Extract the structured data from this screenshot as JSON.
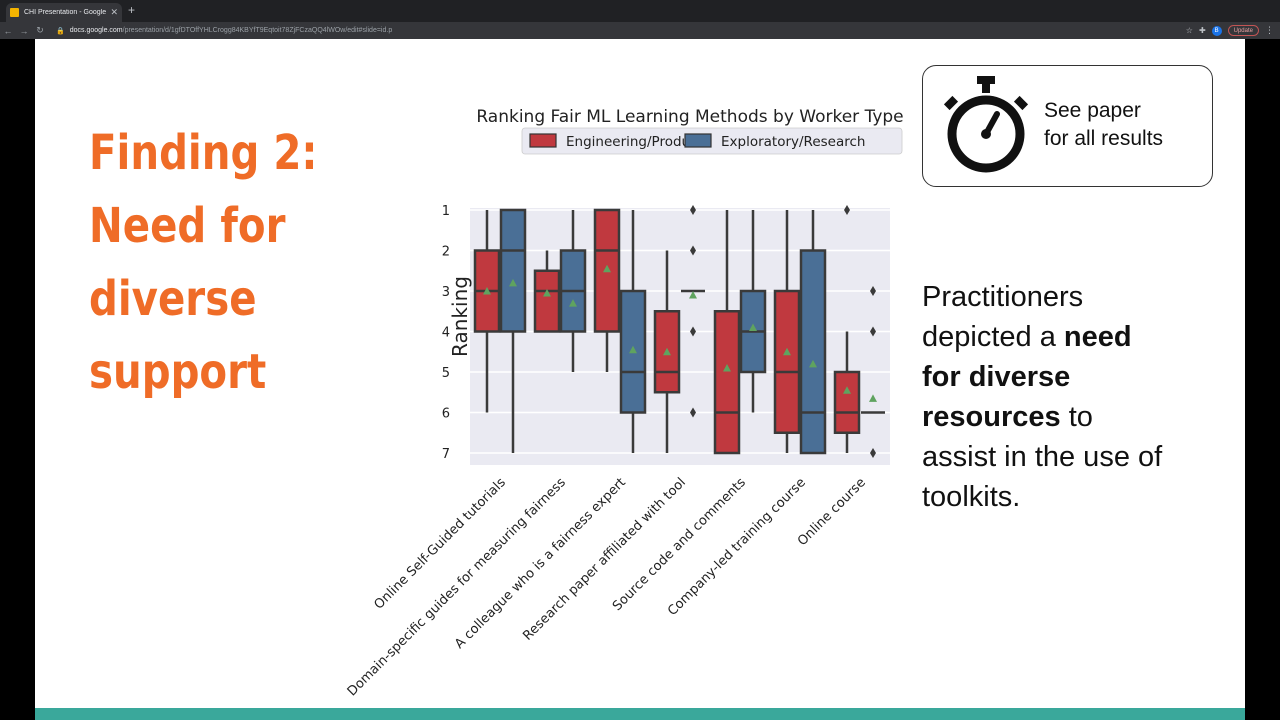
{
  "browser": {
    "tab_title": "CHI Presentation - Google Slides",
    "url_host": "docs.google.com",
    "url_path": "/presentation/d/1gfDTOffYHLCrogg84KBYfT9Eqtoit78ZjFCzaQQ4lWOw/edit#slide=id.p",
    "update_label": "Update",
    "avatar_initial": "B"
  },
  "slide": {
    "title_lines": [
      "Finding 2:",
      "Need for",
      "diverse",
      "support"
    ],
    "paper_note_lines": [
      "See paper",
      "for all results"
    ],
    "description": {
      "line1": "Practitioners",
      "line2_pre": "depicted a ",
      "line2_bold": "need",
      "line3_bold": "for diverse",
      "line4_bold": "resources",
      "line4_post": " to",
      "line5": "assist in the use of",
      "line6": "toolkits."
    }
  },
  "chart_data": {
    "type": "box",
    "title": "Ranking Fair ML Learning Methods by Worker Type",
    "ylabel": "Ranking",
    "xlabel": "",
    "ylim": [
      1,
      7
    ],
    "y_inverted": true,
    "yticks": [
      "1",
      "2",
      "3",
      "4",
      "5",
      "6",
      "7"
    ],
    "grid": true,
    "legend_position": "top",
    "categories": [
      "Online Self-Guided tutorials",
      "Domain-specific guides for measuring fairness",
      "A colleague who is a fairness expert",
      "Research paper affiliated with tool",
      "Source code and comments",
      "Company-led training course",
      "Online course"
    ],
    "series": [
      {
        "name": "Engineering/Product",
        "color": "#c0393f",
        "boxes": [
          {
            "low": 1,
            "q1": 2,
            "median": 3,
            "q3": 4,
            "high": 6,
            "mean": 3.0,
            "outliers": []
          },
          {
            "low": 2,
            "q1": 2.5,
            "median": 3,
            "q3": 4,
            "high": 4,
            "mean": 3.05,
            "outliers": []
          },
          {
            "low": 1,
            "q1": 1,
            "median": 2,
            "q3": 4,
            "high": 5,
            "mean": 2.45,
            "outliers": []
          },
          {
            "low": 2,
            "q1": 3.5,
            "median": 5,
            "q3": 5.5,
            "high": 7,
            "mean": 4.5,
            "outliers": []
          },
          {
            "low": 1,
            "q1": 3.5,
            "median": 6,
            "q3": 7,
            "high": 7,
            "mean": 4.9,
            "outliers": []
          },
          {
            "low": 1,
            "q1": 3,
            "median": 5,
            "q3": 6.5,
            "high": 7,
            "mean": 4.5,
            "outliers": []
          },
          {
            "low": 4,
            "q1": 5,
            "median": 6,
            "q3": 6.5,
            "high": 7,
            "mean": 5.45,
            "outliers": [
              1
            ]
          }
        ]
      },
      {
        "name": "Exploratory/Research",
        "color": "#4a6f96",
        "boxes": [
          {
            "low": 1,
            "q1": 1,
            "median": 2,
            "q3": 4,
            "high": 7,
            "mean": 2.8,
            "outliers": []
          },
          {
            "low": 1,
            "q1": 2,
            "median": 3,
            "q3": 4,
            "high": 5,
            "mean": 3.3,
            "outliers": []
          },
          {
            "low": 1,
            "q1": 3,
            "median": 5,
            "q3": 6,
            "high": 7,
            "mean": 4.45,
            "outliers": []
          },
          {
            "low": 3,
            "q1": 3,
            "median": 3,
            "q3": 3,
            "high": 3,
            "mean": 3.1,
            "outliers": [
              1,
              2,
              4,
              6
            ]
          },
          {
            "low": 1,
            "q1": 3,
            "median": 4,
            "q3": 5,
            "high": 6,
            "mean": 3.9,
            "outliers": []
          },
          {
            "low": 1,
            "q1": 2,
            "median": 6,
            "q3": 7,
            "high": 7,
            "mean": 4.8,
            "outliers": []
          },
          {
            "low": 6,
            "q1": 6,
            "median": 6,
            "q3": 6,
            "high": 6,
            "mean": 5.65,
            "outliers": [
              3,
              4,
              7
            ]
          }
        ]
      }
    ]
  }
}
